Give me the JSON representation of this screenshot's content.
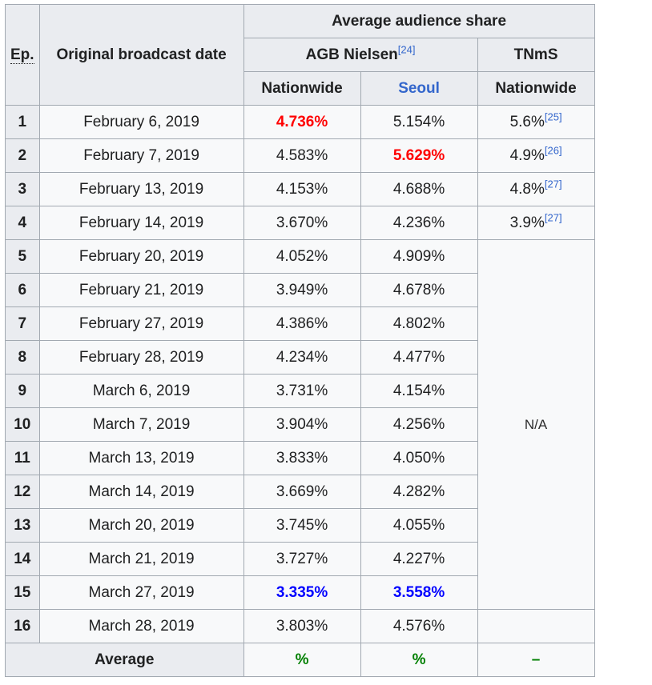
{
  "header": {
    "ep_abbr": "Ep.",
    "date_label": "Original broadcast date",
    "avg_share_label": "Average audience share",
    "agb_label": "AGB Nielsen",
    "agb_ref": "[24]",
    "tnms_label": "TNmS",
    "nationwide_label": "Nationwide",
    "seoul_label": "Seoul",
    "tnms_nationwide_label": "Nationwide"
  },
  "colors": {
    "highest": "#ff0000",
    "lowest": "#0000ff",
    "average": "#008000",
    "link": "#3366cc"
  },
  "rows": [
    {
      "ep": "1",
      "date": "February 6, 2019",
      "nationwide": "4.736%",
      "seoul": "5.154%",
      "tnms": "5.6%",
      "tnms_ref": "[25]"
    },
    {
      "ep": "2",
      "date": "February 7, 2019",
      "nationwide": "4.583%",
      "seoul": "5.629%",
      "tnms": "4.9%",
      "tnms_ref": "[26]"
    },
    {
      "ep": "3",
      "date": "February 13, 2019",
      "nationwide": "4.153%",
      "seoul": "4.688%",
      "tnms": "4.8%",
      "tnms_ref": "[27]"
    },
    {
      "ep": "4",
      "date": "February 14, 2019",
      "nationwide": "3.670%",
      "seoul": "4.236%",
      "tnms": "3.9%",
      "tnms_ref": "[27]"
    },
    {
      "ep": "5",
      "date": "February 20, 2019",
      "nationwide": "4.052%",
      "seoul": "4.909%"
    },
    {
      "ep": "6",
      "date": "February 21, 2019",
      "nationwide": "3.949%",
      "seoul": "4.678%"
    },
    {
      "ep": "7",
      "date": "February 27, 2019",
      "nationwide": "4.386%",
      "seoul": "4.802%"
    },
    {
      "ep": "8",
      "date": "February 28, 2019",
      "nationwide": "4.234%",
      "seoul": "4.477%"
    },
    {
      "ep": "9",
      "date": "March 6, 2019",
      "nationwide": "3.731%",
      "seoul": "4.154%"
    },
    {
      "ep": "10",
      "date": "March 7, 2019",
      "nationwide": "3.904%",
      "seoul": "4.256%"
    },
    {
      "ep": "11",
      "date": "March 13, 2019",
      "nationwide": "3.833%",
      "seoul": "4.050%"
    },
    {
      "ep": "12",
      "date": "March 14, 2019",
      "nationwide": "3.669%",
      "seoul": "4.282%"
    },
    {
      "ep": "13",
      "date": "March 20, 2019",
      "nationwide": "3.745%",
      "seoul": "4.055%"
    },
    {
      "ep": "14",
      "date": "March 21, 2019",
      "nationwide": "3.727%",
      "seoul": "4.227%"
    },
    {
      "ep": "15",
      "date": "March 27, 2019",
      "nationwide": "3.335%",
      "seoul": "3.558%"
    },
    {
      "ep": "16",
      "date": "March 28, 2019",
      "nationwide": "3.803%",
      "seoul": "4.576%"
    }
  ],
  "na_label": "N/A",
  "average": {
    "label": "Average",
    "nationwide": "%",
    "seoul": "%",
    "tnms": "–"
  }
}
